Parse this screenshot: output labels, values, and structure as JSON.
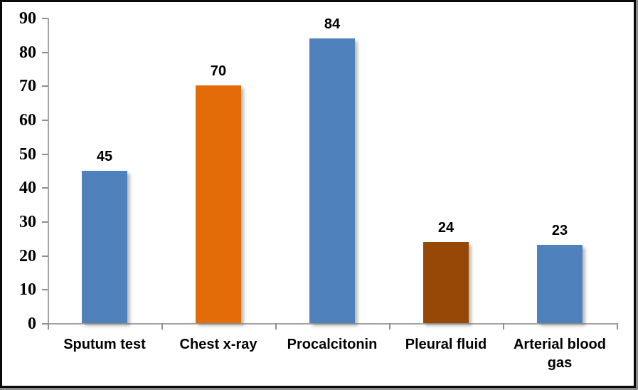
{
  "chart_data": {
    "type": "bar",
    "title": "",
    "xlabel": "",
    "ylabel": "",
    "categories": [
      "Sputum test",
      "Chest x-ray",
      "Procalcitonin",
      "Pleural fluid",
      "Arterial blood gas"
    ],
    "values": [
      45,
      70,
      84,
      24,
      23
    ],
    "data_labels": [
      "45",
      "70",
      "84",
      "24",
      "23"
    ],
    "show_data_labels": true,
    "bar_colors": [
      "#4F81BD",
      "#E36C09",
      "#4F81BD",
      "#974806",
      "#4F81BD"
    ],
    "ylim": [
      0,
      90
    ],
    "ytick_step": 10,
    "ytick_labels": [
      "0",
      "10",
      "20",
      "30",
      "40",
      "50",
      "60",
      "70",
      "80",
      "90"
    ],
    "grid": false,
    "legend": "none",
    "plot_background": "#FFFFFF",
    "axis_color": "#A3A3A3",
    "text_color": "#000000",
    "frame_border_color": "#0A0A0A"
  }
}
